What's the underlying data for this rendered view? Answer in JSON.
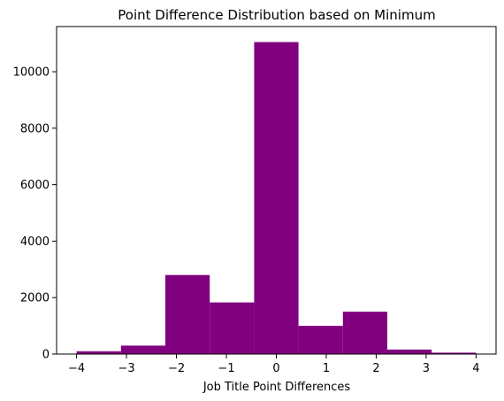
{
  "chart_data": {
    "type": "bar",
    "title": "Point Difference Distribution based on Minimum",
    "xlabel": "Job Title Point Differences",
    "ylabel": "",
    "xlim": [
      -4.4,
      4.4
    ],
    "ylim": [
      0,
      11600
    ],
    "xticks": [
      -4,
      -3,
      -2,
      -1,
      0,
      1,
      2,
      3,
      4
    ],
    "yticks": [
      0,
      2000,
      4000,
      6000,
      8000,
      10000
    ],
    "bin_edges": [
      -4.0,
      -3.111,
      -2.222,
      -1.333,
      -0.444,
      0.444,
      1.333,
      2.222,
      3.111,
      4.0
    ],
    "values": [
      100,
      300,
      2800,
      1830,
      11050,
      1000,
      1500,
      160,
      50
    ],
    "bar_color": "#800080",
    "grid": false
  }
}
